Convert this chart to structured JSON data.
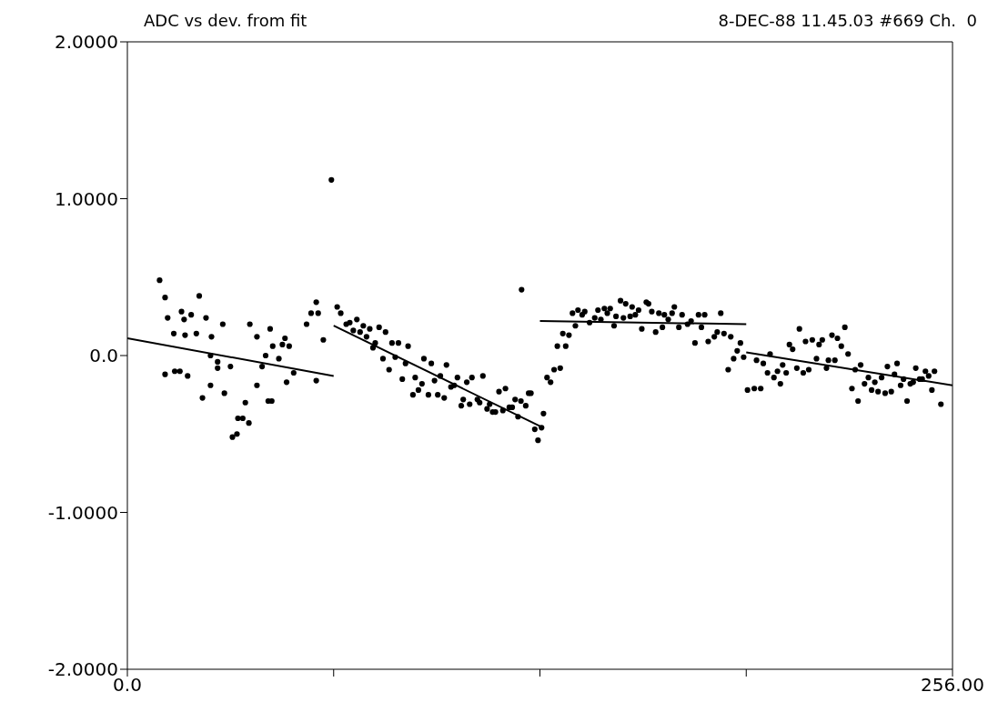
{
  "chart_data": {
    "type": "scatter",
    "title": "ADC vs dev. from fit",
    "subtitle": "8-DEC-88 11.45.03 #669 Ch.  0",
    "xlim": [
      0,
      256
    ],
    "xticks": [
      {
        "value": 0,
        "label": "0.0"
      },
      {
        "value": 64,
        "label": null
      },
      {
        "value": 128,
        "label": null
      },
      {
        "value": 192,
        "label": null
      },
      {
        "value": 256,
        "label": "256.00"
      }
    ],
    "ylim": [
      -2,
      2
    ],
    "yticks": [
      {
        "value": -2,
        "label": "-2.0000"
      },
      {
        "value": -1,
        "label": "-1.0000"
      },
      {
        "value": 0,
        "label": "0.0"
      },
      {
        "value": 1,
        "label": "1.0000"
      },
      {
        "value": 2,
        "label": "2.0000"
      }
    ],
    "grid": false,
    "marker": "circle",
    "series": [
      {
        "color": "#000000",
        "x": [
          10.0,
          11.7,
          12.5,
          11.7,
          14.4,
          14.7,
          16.3,
          16.8,
          17.6,
          17.9,
          19.8,
          18.7,
          22.3,
          21.4,
          24.4,
          23.3,
          25.8,
          26.1,
          25.8,
          28.0,
          28.0,
          29.6,
          30.1,
          32.0,
          32.6,
          34.0,
          34.3,
          35.8,
          36.6,
          37.7,
          38.0,
          40.2,
          40.2,
          41.8,
          42.9,
          43.7,
          44.3,
          44.8,
          45.1,
          47.0,
          48.1,
          48.9,
          49.4,
          50.2,
          51.6,
          55.6,
          57.0,
          58.6,
          58.6,
          59.2,
          60.8,
          63.3,
          65.1,
          66.2,
          67.9,
          69.0,
          71.2,
          70.1,
          72.2,
          73.2,
          74.2,
          75.2,
          76.2,
          76.9,
          78.1,
          79.3,
          80.1,
          81.2,
          82.1,
          83.1,
          84.1,
          85.3,
          86.3,
          87.1,
          88.6,
          89.3,
          90.3,
          91.4,
          92.0,
          93.4,
          94.3,
          95.3,
          96.3,
          97.1,
          98.3,
          99.0,
          100.4,
          101.4,
          102.4,
          103.6,
          104.2,
          105.3,
          106.2,
          106.9,
          108.6,
          109.3,
          110.3,
          111.6,
          112.4,
          113.3,
          114.2,
          115.3,
          116.5,
          117.3,
          118.5,
          119.4,
          120.3,
          121.2,
          122.1,
          123.6,
          124.5,
          125.2,
          126.4,
          127.4,
          122.3,
          128.5,
          129.1,
          130.2,
          131.3,
          132.4,
          134.3,
          133.4,
          135.1,
          136.0,
          137.0,
          138.1,
          139.0,
          139.8,
          141.1,
          141.9,
          143.4,
          145.0,
          146.0,
          146.9,
          148.0,
          148.9,
          149.8,
          151.0,
          151.6,
          153.0,
          153.9,
          154.6,
          156.0,
          156.6,
          157.6,
          158.6,
          159.6,
          161.0,
          161.7,
          162.7,
          163.9,
          164.9,
          166.0,
          166.6,
          167.8,
          169.0,
          169.7,
          171.1,
          172.1,
          173.8,
          174.9,
          176.1,
          177.2,
          178.1,
          179.1,
          180.2,
          182.1,
          183.0,
          184.1,
          185.1,
          186.4,
          187.2,
          188.1,
          189.2,
          190.2,
          191.2,
          192.4,
          194.5,
          195.2,
          196.5,
          197.3,
          198.6,
          199.4,
          200.6,
          201.7,
          202.6,
          203.3,
          204.4,
          205.4,
          206.4,
          207.7,
          208.5,
          209.7,
          210.4,
          211.4,
          212.5,
          213.8,
          214.6,
          215.6,
          216.9,
          217.5,
          218.6,
          219.5,
          220.3,
          221.5,
          222.6,
          223.6,
          224.8,
          225.8,
          226.7,
          227.5,
          228.7,
          229.9,
          230.9,
          231.9,
          232.9,
          234.0,
          235.1,
          235.8,
          237.0,
          238.0,
          238.8,
          239.9,
          240.8,
          241.9,
          242.9,
          243.8,
          244.6,
          245.8,
          246.6,
          247.6,
          248.6,
          249.6,
          250.4,
          252.4
        ],
        "values": [
          0.48,
          0.37,
          0.24,
          -0.12,
          0.14,
          -0.1,
          -0.1,
          0.28,
          0.23,
          0.13,
          0.26,
          -0.13,
          0.38,
          0.14,
          0.24,
          -0.27,
          -0.19,
          0.12,
          0.0,
          -0.04,
          -0.08,
          0.2,
          -0.24,
          -0.07,
          -0.52,
          -0.5,
          -0.4,
          -0.4,
          -0.3,
          -0.43,
          0.2,
          -0.19,
          0.12,
          -0.07,
          0.0,
          -0.29,
          0.17,
          -0.29,
          0.06,
          -0.02,
          0.07,
          0.11,
          -0.17,
          0.06,
          -0.11,
          0.2,
          0.27,
          -0.16,
          0.34,
          0.27,
          0.1,
          1.12,
          0.31,
          0.27,
          0.2,
          0.21,
          0.23,
          0.16,
          0.15,
          0.19,
          0.12,
          0.17,
          0.05,
          0.08,
          0.18,
          -0.02,
          0.15,
          -0.09,
          0.08,
          -0.01,
          0.08,
          -0.15,
          -0.05,
          0.06,
          -0.25,
          -0.14,
          -0.22,
          -0.18,
          -0.02,
          -0.25,
          -0.05,
          -0.16,
          -0.25,
          -0.13,
          -0.27,
          -0.06,
          -0.2,
          -0.19,
          -0.14,
          -0.32,
          -0.28,
          -0.17,
          -0.31,
          -0.14,
          -0.28,
          -0.3,
          -0.13,
          -0.34,
          -0.31,
          -0.36,
          -0.36,
          -0.23,
          -0.35,
          -0.21,
          -0.33,
          -0.33,
          -0.28,
          -0.39,
          -0.29,
          -0.32,
          -0.24,
          -0.24,
          -0.47,
          -0.54,
          0.42,
          -0.46,
          -0.37,
          -0.14,
          -0.17,
          -0.09,
          -0.08,
          0.06,
          0.14,
          0.06,
          0.13,
          0.27,
          0.19,
          0.29,
          0.26,
          0.28,
          0.21,
          0.24,
          0.29,
          0.23,
          0.3,
          0.27,
          0.3,
          0.19,
          0.25,
          0.35,
          0.24,
          0.33,
          0.25,
          0.31,
          0.26,
          0.29,
          0.17,
          0.34,
          0.33,
          0.28,
          0.15,
          0.27,
          0.18,
          0.26,
          0.23,
          0.27,
          0.31,
          0.18,
          0.26,
          0.2,
          0.22,
          0.08,
          0.26,
          0.18,
          0.26,
          0.09,
          0.12,
          0.15,
          0.27,
          0.14,
          -0.09,
          0.12,
          -0.02,
          0.03,
          0.08,
          -0.01,
          -0.22,
          -0.21,
          -0.03,
          -0.21,
          -0.05,
          -0.11,
          0.01,
          -0.14,
          -0.1,
          -0.18,
          -0.06,
          -0.11,
          0.07,
          0.04,
          -0.08,
          0.17,
          -0.11,
          0.09,
          -0.09,
          0.1,
          -0.02,
          0.07,
          0.1,
          -0.08,
          -0.03,
          0.13,
          -0.03,
          0.11,
          0.06,
          0.18,
          0.01,
          -0.21,
          -0.09,
          -0.29,
          -0.06,
          -0.18,
          -0.14,
          -0.22,
          -0.17,
          -0.23,
          -0.14,
          -0.24,
          -0.07,
          -0.23,
          -0.12,
          -0.05,
          -0.19,
          -0.15,
          -0.29,
          -0.18,
          -0.17,
          -0.08,
          -0.15,
          -0.15,
          -0.1,
          -0.13,
          -0.22,
          -0.1,
          -0.31
        ]
      },
      {
        "type": "line",
        "color": "#000000",
        "marker": "none",
        "x": [
          0,
          64
        ],
        "values": [
          0.11,
          -0.13
        ]
      },
      {
        "type": "line",
        "color": "#000000",
        "marker": "none",
        "x": [
          64,
          128
        ],
        "values": [
          0.19,
          -0.45
        ]
      },
      {
        "type": "line",
        "color": "#000000",
        "marker": "none",
        "x": [
          128,
          192
        ],
        "values": [
          0.22,
          0.2
        ]
      },
      {
        "type": "line",
        "color": "#000000",
        "marker": "none",
        "x": [
          192,
          256
        ],
        "values": [
          0.02,
          -0.19
        ]
      }
    ]
  }
}
